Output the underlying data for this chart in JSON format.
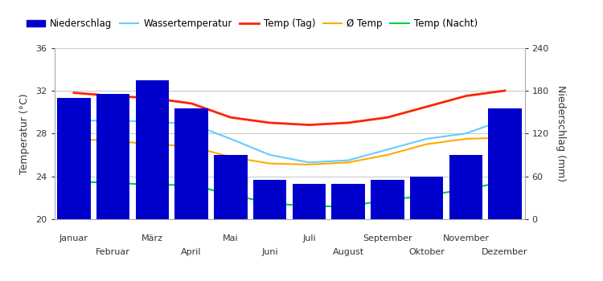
{
  "months": [
    "Januar",
    "Februar",
    "März",
    "April",
    "Mai",
    "Juni",
    "Juli",
    "August",
    "September",
    "Oktober",
    "November",
    "Dezember"
  ],
  "niederschlag": [
    170,
    175,
    195,
    155,
    90,
    55,
    50,
    50,
    55,
    60,
    90,
    155
  ],
  "temp_tag": [
    31.8,
    31.5,
    31.3,
    30.8,
    29.5,
    29.0,
    28.8,
    29.0,
    29.5,
    30.5,
    31.5,
    32.0
  ],
  "temp_nacht": [
    23.5,
    23.4,
    23.2,
    23.2,
    22.3,
    21.5,
    21.2,
    21.2,
    21.8,
    22.2,
    22.8,
    23.5
  ],
  "temp_avg": [
    27.5,
    27.3,
    27.0,
    26.8,
    25.8,
    25.2,
    25.1,
    25.3,
    26.0,
    27.0,
    27.5,
    27.6
  ],
  "wasser_temp": [
    29.2,
    29.2,
    29.1,
    28.9,
    27.5,
    26.0,
    25.3,
    25.5,
    26.5,
    27.5,
    28.0,
    29.3
  ],
  "bar_color": "#0000cc",
  "line_color_wasser": "#66ccff",
  "line_color_tag": "#ff2200",
  "line_color_avg": "#ffaa00",
  "line_color_nacht": "#00cc44",
  "ylabel_left": "Temperatur (°C)",
  "ylabel_right": "Niederschlag (mm)",
  "ylim_left": [
    20,
    36
  ],
  "ylim_right": [
    0,
    240
  ],
  "yticks_left": [
    20,
    24,
    28,
    32,
    36
  ],
  "yticks_right": [
    0,
    60,
    120,
    180,
    240
  ],
  "legend_labels": [
    "Niederschlag",
    "Wassertemperatur",
    "Temp (Tag)",
    "Ø Temp",
    "Temp (Nacht)"
  ],
  "background_color": "#ffffff",
  "grid_color": "#cccccc",
  "spine_color": "#aaaaaa",
  "text_color": "#333333"
}
